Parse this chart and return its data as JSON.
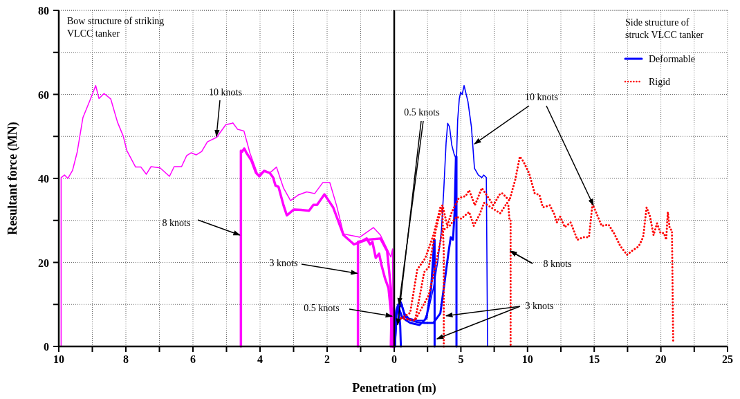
{
  "chart_data": [
    {
      "type": "line",
      "xlabel": "Penetration (m)",
      "ylabel": "Resultant force (MN)",
      "xlim": [
        10,
        0
      ],
      "xticks": [
        10,
        {
          "value": 9,
          "label": null
        },
        8,
        {
          "value": 7,
          "label": null
        },
        6,
        {
          "value": 5,
          "label": null
        },
        4,
        {
          "value": 3,
          "label": null
        },
        2,
        {
          "value": 1,
          "label": null
        },
        0
      ],
      "ylim": [
        0,
        80
      ],
      "yticks": [
        0,
        {
          "value": 10,
          "label": null
        },
        20,
        {
          "value": 30,
          "label": null
        },
        40,
        {
          "value": 50,
          "label": null
        },
        60,
        {
          "value": 70,
          "label": null
        },
        80
      ],
      "grid": true,
      "marker": "none",
      "annotations": [
        "Bow structure of striking VLCC tanker",
        {
          "text": "10 knots",
          "x": 5.3,
          "y": 50
        },
        {
          "text": "8 knots",
          "x": 4.6,
          "y": 26.5
        },
        {
          "text": "3 knots",
          "x": 1.1,
          "y": 17.4
        },
        {
          "text": "0.5 knots",
          "x": 0.06,
          "y": 7.2
        }
      ],
      "series": [
        {
          "color": "#ff00ff",
          "x": [
            9.93,
            9.93,
            9.83,
            9.73,
            9.59,
            9.45,
            9.28,
            9.07,
            8.9,
            8.8,
            8.65,
            8.45,
            8.25,
            8.08,
            7.97,
            7.71,
            7.55,
            7.39,
            7.25,
            6.98,
            6.7,
            6.56,
            6.34,
            6.19,
            6.05,
            5.9,
            5.74,
            5.57,
            5.29,
            5.02,
            4.85,
            4.81,
            4.67,
            4.48,
            4.3,
            4.06,
            3.85,
            3.71,
            3.51,
            3.3,
            3.09,
            2.85,
            2.61,
            2.37,
            2.13,
            1.92,
            1.72,
            1.51,
            1.03,
            0.62,
            0.41,
            0.21,
            0.1,
            0.05,
            0.03
          ],
          "values": [
            0,
            40.2,
            40.8,
            40,
            41.9,
            46.3,
            54.5,
            58.6,
            62.1,
            59,
            60.2,
            58.9,
            53.4,
            50.1,
            46.6,
            42.7,
            42.7,
            41,
            42.8,
            42.5,
            40.5,
            42.8,
            42.8,
            45.4,
            46.1,
            45.6,
            46.4,
            48.7,
            49.8,
            52.8,
            53.1,
            53.2,
            51.7,
            51.3,
            46,
            40.8,
            41.9,
            41.3,
            42.7,
            37.7,
            34.7,
            36.1,
            36.8,
            36.4,
            39,
            39,
            33.6,
            26.8,
            26,
            28.3,
            26.5,
            23.2,
            21.3,
            23.2,
            0
          ]
        },
        {
          "color": "#ff00ff",
          "x": [
            4.57,
            4.57,
            4.54,
            4.47,
            4.4,
            4.26,
            4.12,
            4.02,
            3.88,
            3.71,
            3.61,
            3.54,
            3.45,
            3.3,
            3.2,
            2.99,
            2.78,
            2.54,
            2.41,
            2.3,
            2.08,
            1.82,
            1.51,
            1.2,
            0.82,
            0.41,
            0.21,
            0.1,
            0.05
          ],
          "values": [
            0,
            46.6,
            46.3,
            47.1,
            46,
            44.3,
            41.3,
            40.5,
            41.8,
            41.3,
            40.2,
            38.3,
            38,
            33.6,
            31.2,
            32.6,
            32.5,
            32.3,
            33.7,
            33.7,
            36.2,
            33.1,
            26.5,
            24.3,
            25.4,
            25.7,
            22.7,
            13.9,
            0
          ]
        },
        {
          "color": "#ff00ff",
          "x": [
            1.08,
            1.08,
            0.96,
            0.82,
            0.72,
            0.65,
            0.55,
            0.45,
            0.38,
            0.27,
            0.17,
            0.1,
            0.05
          ],
          "values": [
            0,
            24.9,
            25.1,
            25.7,
            24.3,
            24.9,
            21.1,
            22.1,
            19.4,
            16.1,
            13.9,
            8.4,
            0
          ]
        },
        {
          "color": "#ff00ff",
          "x": [
            0.1,
            0.08,
            0.06,
            0.03,
            0.01
          ],
          "values": [
            0,
            8,
            7.5,
            9,
            0
          ]
        }
      ]
    },
    {
      "type": "line",
      "xlim": [
        0,
        25
      ],
      "xticks": [
        {
          "value": 0,
          "label": null
        },
        {
          "value": 2.5,
          "label": null
        },
        5,
        {
          "value": 7.5,
          "label": null
        },
        10,
        {
          "value": 12.5,
          "label": null
        },
        15,
        {
          "value": 17.5,
          "label": null
        },
        20,
        {
          "value": 22.5,
          "label": null
        },
        25
      ],
      "ylim": [
        0,
        80
      ],
      "yticks": [
        0,
        {
          "value": 10,
          "label": null
        },
        20,
        {
          "value": 30,
          "label": null
        },
        40,
        {
          "value": 50,
          "label": null
        },
        60,
        {
          "value": 70,
          "label": null
        },
        80
      ],
      "tick_labels": "x",
      "grid": true,
      "marker": "none",
      "legend": "top right",
      "legend_title": "Side structure of struck VLCC tanker",
      "annotations": [
        {
          "text": "0.5 knots",
          "x": 0.36,
          "y": 10
        },
        {
          "text": "10 knots",
          "x": 6.02,
          "y": 48.2
        },
        {
          "text": "8 knots",
          "x": 8.71,
          "y": 22.7
        },
        {
          "text": "3 knots",
          "x": 3.89,
          "y": 7.3
        }
      ],
      "series": [
        {
          "name": "Deformable",
          "color": "#0000ff",
          "x": [
            0.05,
            0.17,
            0.26,
            0.52,
            0.78,
            1.12,
            1.73,
            2.25,
            2.59,
            2.94,
            3.28,
            3.54,
            3.72,
            3.89,
            4.01,
            4.15,
            4.32,
            4.5,
            4.67,
            4.76,
            4.88,
            4.98,
            5.1,
            5.24,
            5.53,
            5.79,
            6.02,
            6.31,
            6.57,
            6.71,
            6.91,
            7,
            7
          ],
          "values": [
            0,
            8.4,
            9.5,
            10.6,
            7.9,
            6.7,
            6.2,
            6.2,
            8.9,
            13.9,
            20.5,
            27.6,
            37.5,
            48.4,
            53.1,
            52.3,
            47.9,
            45.7,
            44.6,
            53.9,
            58.9,
            60.5,
            60,
            62.1,
            58.3,
            52.3,
            42.4,
            40.8,
            40.2,
            40.8,
            40.2,
            0.7,
            0
          ]
        },
        {
          "color": "#0000ff",
          "x": [
            0.05,
            0.17,
            0.3,
            0.55,
            0.8,
            1.12,
            1.73,
            2.25,
            2.94,
            3.46,
            3.72,
            4.06,
            4.24,
            4.41,
            4.53,
            4.63,
            4.67,
            4.67
          ],
          "values": [
            0,
            7.5,
            9,
            10,
            7.2,
            6.4,
            5.8,
            5.6,
            5.6,
            7.9,
            13.9,
            22.1,
            26,
            25.4,
            32,
            45.2,
            45.2,
            0
          ]
        },
        {
          "color": "#0000ff",
          "x": [
            0.05,
            0.15,
            0.3,
            0.6,
            0.9,
            1.21,
            1.9,
            2.42,
            2.77,
            2.94,
            2.99,
            3.03,
            3.03
          ],
          "values": [
            0,
            8,
            9.5,
            7,
            6.2,
            5.6,
            5.1,
            6.7,
            13.9,
            22.1,
            25.4,
            25.4,
            0
          ]
        },
        {
          "color": "#0000ff",
          "x": [
            0.05,
            0.15,
            0.3,
            0.45,
            0.5
          ],
          "values": [
            0,
            8.5,
            10,
            5,
            0
          ]
        },
        {
          "name": "Rigid",
          "color": "#ff0000",
          "line_style": "dotted",
          "x": [
            0.52,
            1.2,
            1.73,
            2.33,
            2.94,
            3.46,
            3.63,
            3.98,
            4.32,
            4.84,
            5.36,
            5.62,
            6.05,
            6.57,
            7.09,
            7.43,
            7.95,
            8.13,
            8.64,
            9.08,
            9.42,
            9.68,
            10.11,
            10.54,
            10.89,
            11.15,
            11.67,
            12.02,
            12.19,
            12.45,
            12.79,
            13.23,
            13.74,
            14.18,
            14.61,
            14.87,
            15.13,
            15.56,
            16.08,
            16.51,
            16.94,
            17.46,
            17.81,
            18.33,
            18.67,
            18.93,
            19.19,
            19.45,
            19.71,
            19.97,
            20.23,
            20.4,
            20.52,
            20.66,
            20.83,
            20.92
          ],
          "values": [
            6.7,
            8,
            18.3,
            21,
            26.5,
            33.1,
            33.6,
            28.7,
            32,
            35.3,
            35.8,
            37.2,
            33.6,
            37.7,
            35.3,
            33.6,
            36.4,
            36.4,
            34.7,
            39.7,
            45.2,
            44.1,
            41.3,
            36.4,
            36.1,
            33.1,
            33.6,
            31.4,
            29.5,
            30.9,
            28.4,
            29.5,
            25.4,
            26,
            26,
            33.9,
            32,
            28.7,
            29,
            26.8,
            24,
            21.8,
            22.7,
            23.8,
            26,
            33.1,
            30.9,
            26.5,
            29.3,
            27,
            27,
            25.4,
            32,
            28.1,
            27.6,
            1.3
          ]
        },
        {
          "color": "#ff0000",
          "line_style": "dotted",
          "x": [
            0.52,
            1.56,
            2.59,
            3.11,
            3.63,
            4.15,
            4.67,
            5.02,
            5.62,
            5.96,
            6.4,
            6.74,
            7.26,
            7.95,
            8.47,
            8.56,
            8.64,
            8.73,
            8.73
          ],
          "values": [
            6.7,
            6.2,
            12.2,
            19.4,
            27.6,
            28.7,
            30.9,
            30.4,
            32,
            28.7,
            31.4,
            34.2,
            33.1,
            31.7,
            34.2,
            33.6,
            30.3,
            30.3,
            0
          ]
        },
        {
          "color": "#ff0000",
          "line_style": "dotted",
          "x": [
            0.52,
            1.56,
            1.9,
            2.25,
            2.59,
            2.85,
            3.11,
            3.37,
            3.6,
            3.66,
            3.72,
            3.72
          ],
          "values": [
            6.7,
            6.2,
            11.7,
            17.7,
            18.8,
            23.2,
            27.6,
            30.9,
            33.1,
            27.6,
            22,
            0
          ]
        }
      ]
    }
  ]
}
